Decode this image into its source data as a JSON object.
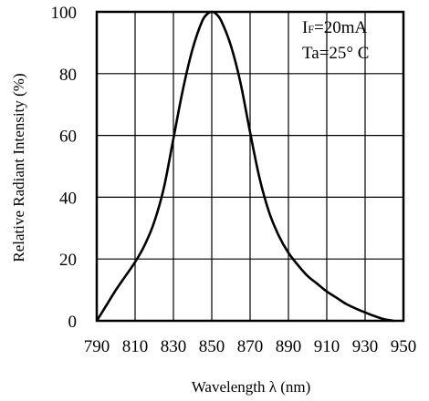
{
  "chart_data": {
    "type": "line",
    "title": "",
    "xlabel": "Wavelength λ (nm)",
    "ylabel": "Relative Radiant Intensity (%)",
    "xlim": [
      790,
      950
    ],
    "ylim": [
      0,
      100
    ],
    "grid": true,
    "x_ticks": [
      "790",
      "810",
      "830",
      "850",
      "870",
      "890",
      "910",
      "930",
      "950"
    ],
    "y_ticks": [
      "0",
      "20",
      "40",
      "60",
      "80",
      "100"
    ],
    "annotations": {
      "current_prefix": "I",
      "current_sub": "F",
      "current_value": "=20mA",
      "temperature": "Ta=25°  C"
    },
    "series": [
      {
        "x": [
          790,
          795,
          800,
          805,
          810,
          815,
          820,
          825,
          830,
          835,
          840,
          845,
          848,
          850,
          852,
          855,
          860,
          865,
          870,
          875,
          880,
          885,
          890,
          895,
          900,
          905,
          910,
          915,
          920,
          925,
          930,
          935,
          940,
          945
        ],
        "y": [
          0,
          5,
          10,
          14.5,
          19,
          24.5,
          32,
          43,
          59,
          75,
          88,
          97,
          99.5,
          100,
          99.5,
          97,
          89,
          77,
          61,
          46,
          35,
          27.5,
          22,
          18,
          14.5,
          12,
          9.5,
          7.5,
          5.5,
          4,
          2.7,
          1.5,
          0.5,
          0
        ]
      }
    ]
  }
}
